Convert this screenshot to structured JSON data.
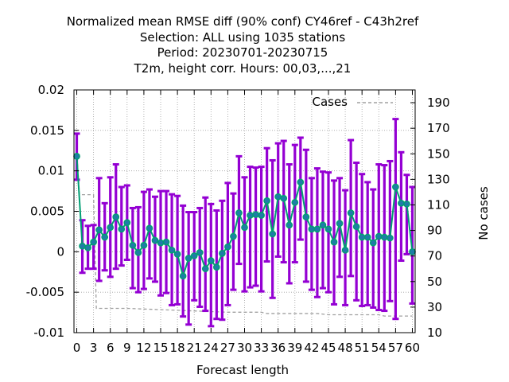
{
  "chart_data": {
    "type": "line",
    "title_lines": [
      "Normalized mean RMSE diff (90% conf) CY46ref - C43h2ref",
      "Selection: ALL using  1035 stations",
      "Period: 20230701-20230715",
      "T2m, height corr.   Hours:  00,03,...,21"
    ],
    "xlabel": "Forecast length",
    "ylabel_right": "No cases",
    "x_ticks": [
      "0",
      "3",
      "6",
      "9",
      "12",
      "15",
      "18",
      "21",
      "24",
      "27",
      "30",
      "33",
      "36",
      "39",
      "42",
      "45",
      "48",
      "51",
      "54",
      "57",
      "60"
    ],
    "y_ticks": [
      "0.02",
      "0.015",
      "0.01",
      "0.005",
      "0",
      "-0.005",
      "-0.01"
    ],
    "y2_ticks": [
      "190",
      "170",
      "150",
      "130",
      "110",
      "90",
      "70",
      "50",
      "30",
      "10"
    ],
    "xlim": [
      -0.5,
      60.5
    ],
    "ylim": [
      -0.01,
      0.02
    ],
    "y2lim": [
      10,
      200
    ],
    "legend": {
      "label": "Cases",
      "position": "top-right"
    },
    "colors": {
      "errorbar": "#9400d3",
      "line": "#009e73",
      "point": "#1f7ca8",
      "cases": "#a0a0a0",
      "grid": "#a0a0a0"
    },
    "series": [
      {
        "x": [
          0,
          1,
          2,
          3,
          4,
          5,
          6,
          7,
          8,
          9,
          10,
          11,
          12,
          13,
          14,
          15,
          16,
          17,
          18,
          19,
          20,
          21,
          22,
          23,
          24,
          25,
          26,
          27,
          28,
          29,
          30,
          31,
          32,
          33,
          34,
          35,
          36,
          37,
          38,
          39,
          40,
          41,
          42,
          43,
          44,
          45,
          46,
          47,
          48,
          49,
          50,
          51,
          52,
          53,
          54,
          55,
          56,
          57,
          58,
          59,
          60
        ],
        "mean": [
          0.0118,
          0.0007,
          0.0005,
          0.0012,
          0.0027,
          0.0018,
          0.003,
          0.0043,
          0.0028,
          0.0036,
          0.0008,
          -0.0001,
          0.0008,
          0.0029,
          0.0014,
          0.0011,
          0.0012,
          0.0002,
          -0.0003,
          -0.003,
          -0.0008,
          -0.0005,
          -0.0001,
          -0.0021,
          -0.0011,
          -0.0019,
          -0.0002,
          0.0006,
          0.0019,
          0.0048,
          0.003,
          0.0045,
          0.0046,
          0.0045,
          0.0063,
          0.0022,
          0.0068,
          0.0066,
          0.0033,
          0.0061,
          0.0086,
          0.0043,
          0.0028,
          0.0028,
          0.0033,
          0.0028,
          0.0012,
          0.0035,
          0.0002,
          0.0048,
          0.0031,
          0.0018,
          0.0018,
          0.0011,
          0.0019,
          0.0018,
          0.0017,
          0.008,
          0.006,
          0.0059,
          0.0
        ],
        "upper": [
          0.0146,
          0.0039,
          0.0032,
          0.0033,
          0.0091,
          0.006,
          0.0092,
          0.0108,
          0.008,
          0.0082,
          0.0054,
          0.0055,
          0.0074,
          0.0077,
          0.0068,
          0.0075,
          0.0075,
          0.0071,
          0.0069,
          0.0057,
          0.0049,
          0.0049,
          0.0054,
          0.0067,
          0.0059,
          0.0051,
          0.0063,
          0.0085,
          0.0072,
          0.0118,
          0.0092,
          0.0105,
          0.0104,
          0.0105,
          0.0128,
          0.0113,
          0.0134,
          0.0137,
          0.0108,
          0.0132,
          0.0141,
          0.0126,
          0.0091,
          0.0103,
          0.0099,
          0.0098,
          0.0088,
          0.0091,
          0.0076,
          0.0138,
          0.011,
          0.0096,
          0.0086,
          0.0077,
          0.0108,
          0.0107,
          0.0112,
          0.0164,
          0.0123,
          0.0095,
          0.008
        ],
        "lower": [
          0.0089,
          -0.0026,
          -0.0021,
          -0.0021,
          -0.0036,
          -0.0023,
          -0.0031,
          -0.0021,
          -0.0017,
          -0.001,
          -0.0045,
          -0.005,
          -0.0046,
          -0.0033,
          -0.0037,
          -0.0054,
          -0.0051,
          -0.0066,
          -0.0065,
          -0.008,
          -0.009,
          -0.006,
          -0.0068,
          -0.0073,
          -0.0092,
          -0.0083,
          -0.0084,
          -0.0066,
          -0.0047,
          -0.0015,
          -0.0049,
          -0.0044,
          -0.0042,
          -0.0049,
          -0.0012,
          -0.0057,
          -0.0006,
          -0.0013,
          -0.0039,
          -0.0013,
          0.0015,
          -0.0037,
          -0.0047,
          -0.0056,
          -0.0045,
          -0.005,
          -0.0065,
          -0.0031,
          -0.0066,
          -0.003,
          -0.006,
          -0.0067,
          -0.0066,
          -0.0069,
          -0.0072,
          -0.0073,
          -0.0061,
          -0.0083,
          -0.0011,
          -0.0003,
          -0.0064
        ]
      }
    ],
    "cases": [
      {
        "x": 0,
        "y": 151
      },
      {
        "x": 0.5,
        "y": 118
      },
      {
        "x": 3,
        "y": 118
      },
      {
        "x": 3.5,
        "y": 29
      },
      {
        "x": 9,
        "y": 29
      },
      {
        "x": 15,
        "y": 28
      },
      {
        "x": 21,
        "y": 27
      },
      {
        "x": 27,
        "y": 26
      },
      {
        "x": 33,
        "y": 26
      },
      {
        "x": 34,
        "y": 25
      },
      {
        "x": 43,
        "y": 25
      },
      {
        "x": 45,
        "y": 24
      },
      {
        "x": 54,
        "y": 24
      },
      {
        "x": 55,
        "y": 23
      },
      {
        "x": 60,
        "y": 23
      }
    ]
  }
}
